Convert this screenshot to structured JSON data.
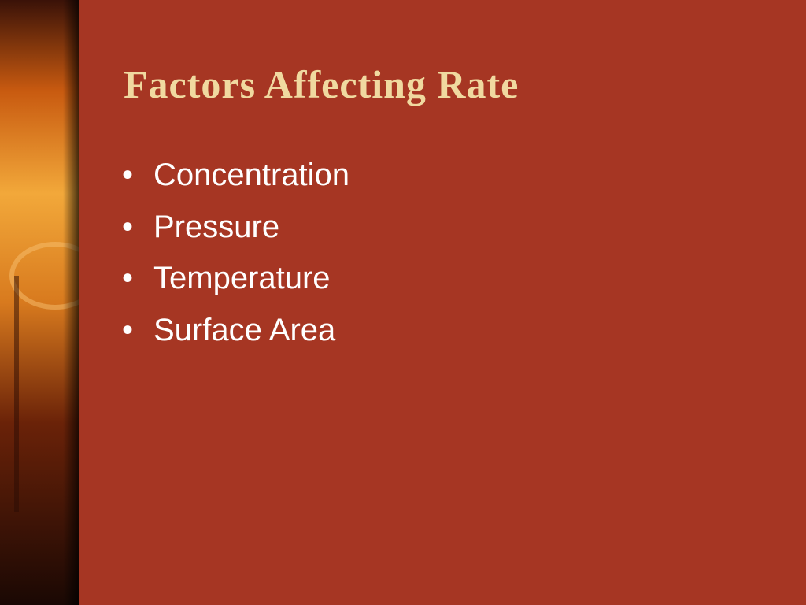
{
  "slide": {
    "title": "Factors Affecting Rate",
    "bullets": [
      "Concentration",
      "Pressure",
      "Temperature",
      "Surface Area"
    ]
  }
}
